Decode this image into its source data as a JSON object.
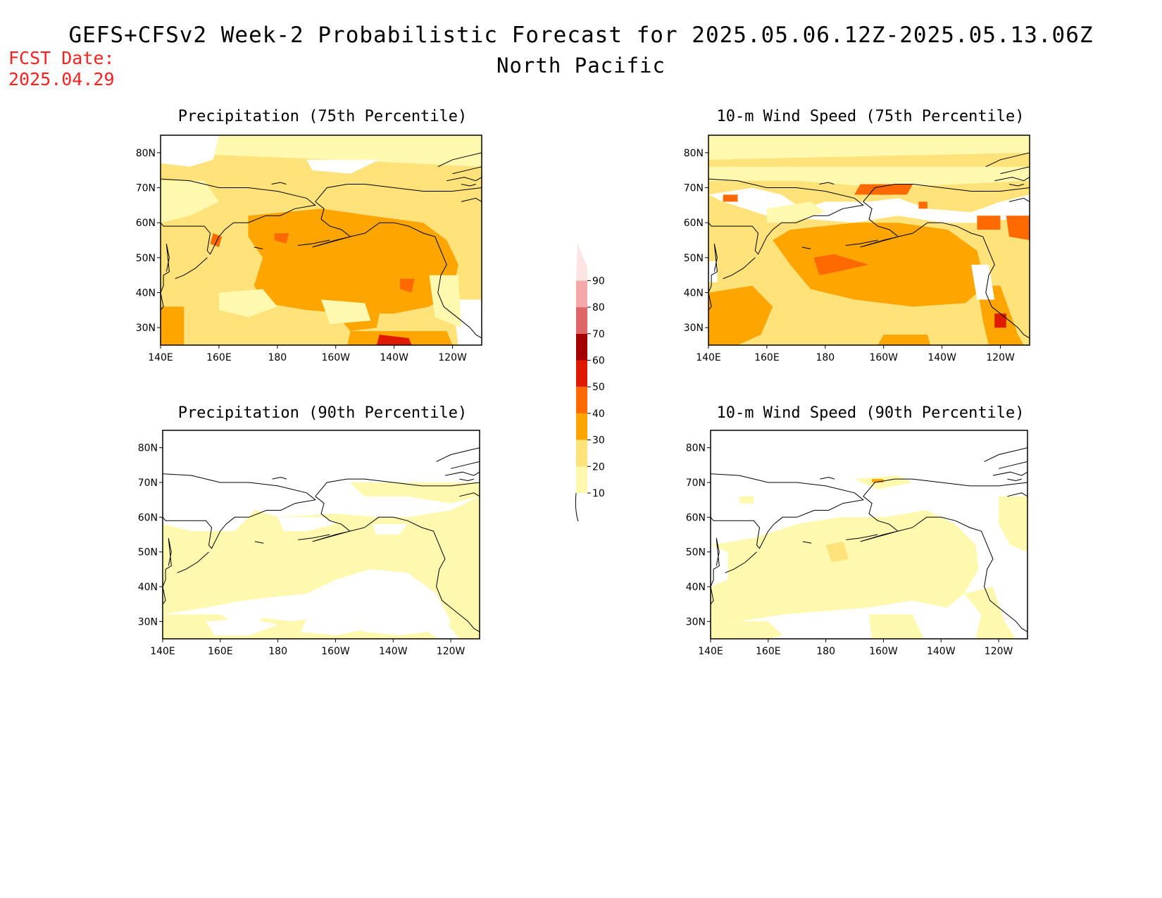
{
  "header": {
    "title": "GEFS+CFSv2 Week-2 Probabilistic Forecast for 2025.05.06.12Z-2025.05.13.06Z",
    "subtitle": "North Pacific",
    "fcst_date_label": "FCST Date:",
    "fcst_date_value": "2025.04.29"
  },
  "panels": [
    {
      "id": "precip75",
      "title": "Precipitation (75th Percentile)",
      "variable": "Precipitation",
      "percentile": "75th",
      "dominant_level": 30
    },
    {
      "id": "wind75",
      "title": "10-m Wind Speed (75th Percentile)",
      "variable": "10-m Wind Speed",
      "percentile": "75th",
      "dominant_level": 30
    },
    {
      "id": "precip90",
      "title": "Precipitation (90th Percentile)",
      "variable": "Precipitation",
      "percentile": "90th",
      "dominant_level": 10
    },
    {
      "id": "wind90",
      "title": "10-m Wind Speed (90th Percentile)",
      "variable": "10-m Wind Speed",
      "percentile": "90th",
      "dominant_level": 10
    }
  ],
  "axes": {
    "lon_labels": [
      "140E",
      "160E",
      "180",
      "160W",
      "140W",
      "120W"
    ],
    "lat_labels": [
      "80N",
      "70N",
      "60N",
      "50N",
      "40N",
      "30N"
    ],
    "lon_range": [
      "140E",
      "110W"
    ],
    "lat_range": [
      "25N",
      "85N"
    ]
  },
  "colorbar": {
    "levels": [
      "10",
      "20",
      "30",
      "40",
      "50",
      "60",
      "70",
      "80",
      "90"
    ],
    "colors": [
      "#fff9b0",
      "#ffe27a",
      "#ffa500",
      "#ff6a00",
      "#e01a00",
      "#a50000",
      "#de6666",
      "#f4a8a8",
      "#fde4e4"
    ],
    "unit": "%"
  }
}
